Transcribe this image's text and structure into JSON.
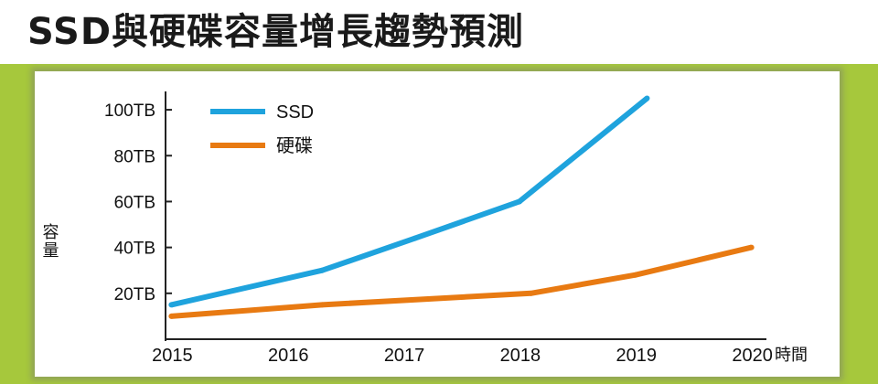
{
  "title": "SSD與硬碟容量增長趨勢預測",
  "colors": {
    "frame": "#a6c83c",
    "ssd": "#1fa3dd",
    "hdd": "#e87a12",
    "axis": "#222222"
  },
  "chart_data": {
    "type": "line",
    "title": "SSD與硬碟容量增長趨勢預測",
    "xlabel": "時間",
    "ylabel": "容量",
    "x": [
      2015,
      2016,
      2017,
      2018,
      2019,
      2020
    ],
    "x_tick_labels": [
      "2015",
      "2016",
      "2017",
      "2018",
      "2019",
      "2020"
    ],
    "y_tick_values": [
      20,
      40,
      60,
      80,
      100
    ],
    "y_tick_labels": [
      "20TB",
      "40TB",
      "60TB",
      "80TB",
      "100TB"
    ],
    "ylim": [
      0,
      108
    ],
    "xlim": [
      2014.95,
      2020.05
    ],
    "grid": false,
    "legend_position": "top-left",
    "series": [
      {
        "name": "SSD",
        "color": "#1fa3dd",
        "points": [
          [
            2015,
            15
          ],
          [
            2016.3,
            30
          ],
          [
            2017.1,
            44
          ],
          [
            2018,
            60
          ],
          [
            2019.1,
            105
          ]
        ]
      },
      {
        "name": "硬碟",
        "color": "#e87a12",
        "points": [
          [
            2015,
            10
          ],
          [
            2016.3,
            15
          ],
          [
            2018.1,
            20
          ],
          [
            2019,
            28
          ],
          [
            2020,
            40
          ]
        ]
      }
    ]
  }
}
